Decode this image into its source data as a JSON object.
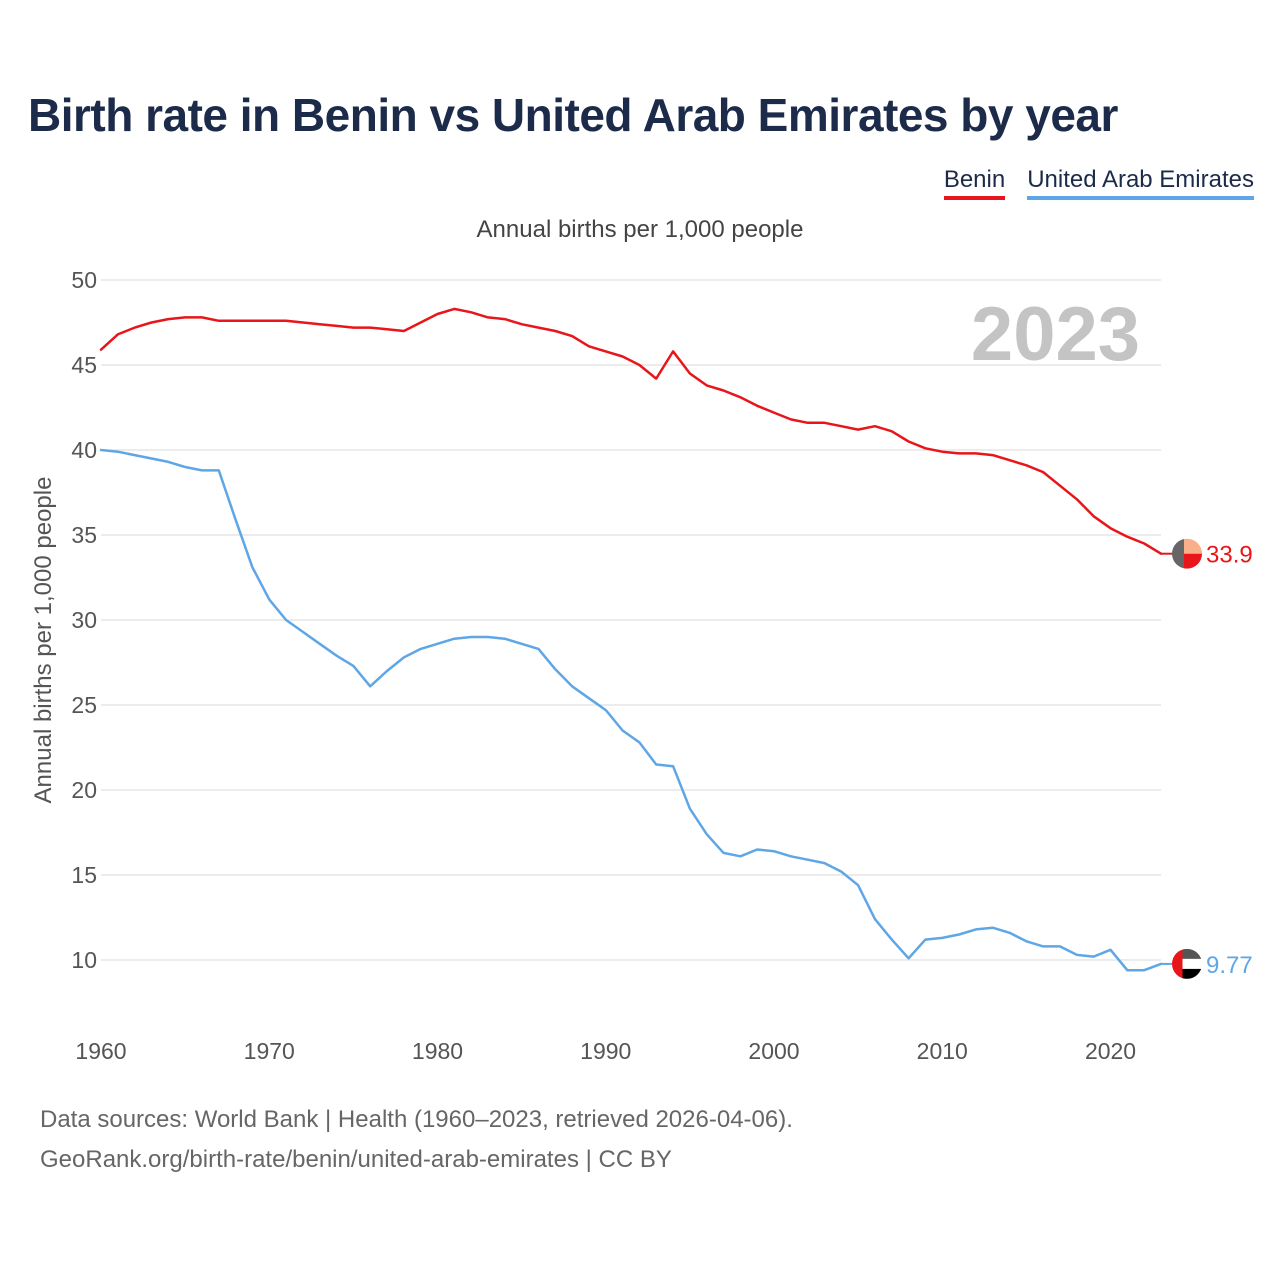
{
  "chart_data": {
    "type": "line",
    "title": "Birth rate in Benin vs United Arab Emirates by year",
    "subtitle": "Annual births per 1,000 people",
    "ylabel": "Annual births per 1,000 people",
    "xlabel": "",
    "year_badge": "2023",
    "xlim": [
      1960,
      2023
    ],
    "ylim": [
      7,
      50
    ],
    "x_ticks": [
      "1960",
      "1970",
      "1980",
      "1990",
      "2000",
      "2010",
      "2020"
    ],
    "y_ticks": [
      "10",
      "15",
      "20",
      "25",
      "30",
      "35",
      "40",
      "45",
      "50"
    ],
    "x": [
      1960,
      1961,
      1962,
      1963,
      1964,
      1965,
      1966,
      1967,
      1968,
      1969,
      1970,
      1971,
      1972,
      1973,
      1974,
      1975,
      1976,
      1977,
      1978,
      1979,
      1980,
      1981,
      1982,
      1983,
      1984,
      1985,
      1986,
      1987,
      1988,
      1989,
      1990,
      1991,
      1992,
      1993,
      1994,
      1995,
      1996,
      1997,
      1998,
      1999,
      2000,
      2001,
      2002,
      2003,
      2004,
      2005,
      2006,
      2007,
      2008,
      2009,
      2010,
      2011,
      2012,
      2013,
      2014,
      2015,
      2016,
      2017,
      2018,
      2019,
      2020,
      2021,
      2022,
      2023
    ],
    "series": [
      {
        "name": "Benin",
        "color": "#e8161a",
        "end_label": "33.9",
        "values": [
          45.9,
          46.8,
          47.2,
          47.5,
          47.7,
          47.8,
          47.8,
          47.6,
          47.6,
          47.6,
          47.6,
          47.6,
          47.5,
          47.4,
          47.3,
          47.2,
          47.2,
          47.1,
          47.0,
          47.5,
          48.0,
          48.3,
          48.1,
          47.8,
          47.7,
          47.4,
          47.2,
          47.0,
          46.7,
          46.1,
          45.8,
          45.5,
          45.0,
          44.2,
          45.8,
          44.5,
          43.8,
          43.5,
          43.1,
          42.6,
          42.2,
          41.8,
          41.6,
          41.6,
          41.4,
          41.2,
          41.4,
          41.1,
          40.5,
          40.1,
          39.9,
          39.8,
          39.8,
          39.7,
          39.4,
          39.1,
          38.7,
          37.9,
          37.1,
          36.1,
          35.4,
          34.9,
          34.5,
          33.9
        ]
      },
      {
        "name": "United Arab Emirates",
        "color": "#5fa6e6",
        "end_label": "9.77",
        "values": [
          40.0,
          39.9,
          39.7,
          39.5,
          39.3,
          39.0,
          38.8,
          38.8,
          35.9,
          33.1,
          31.2,
          30.0,
          29.3,
          28.6,
          27.9,
          27.3,
          26.1,
          27.0,
          27.8,
          28.3,
          28.6,
          28.9,
          29.0,
          29.0,
          28.9,
          28.6,
          28.3,
          27.1,
          26.1,
          25.4,
          24.7,
          23.5,
          22.8,
          21.5,
          21.4,
          18.9,
          17.4,
          16.3,
          16.1,
          16.5,
          16.4,
          16.1,
          15.9,
          15.7,
          15.2,
          14.4,
          12.4,
          11.2,
          10.1,
          11.2,
          11.3,
          11.5,
          11.8,
          11.9,
          11.6,
          11.1,
          10.8,
          10.8,
          10.3,
          10.2,
          10.6,
          9.4,
          9.4,
          9.77
        ]
      }
    ]
  },
  "legend": {
    "benin_label": "Benin",
    "uae_label": "United Arab Emirates"
  },
  "footer": {
    "sources": "Data sources: World Bank | Health (1960–2023, retrieved 2026-04-06).",
    "url": "GeoRank.org/birth-rate/benin/united-arab-emirates | CC BY"
  },
  "colors": {
    "title": "#1c2b4a",
    "grid": "#e6e6e6",
    "axis_text": "#555555",
    "year_badge": "#c4c4c4"
  }
}
